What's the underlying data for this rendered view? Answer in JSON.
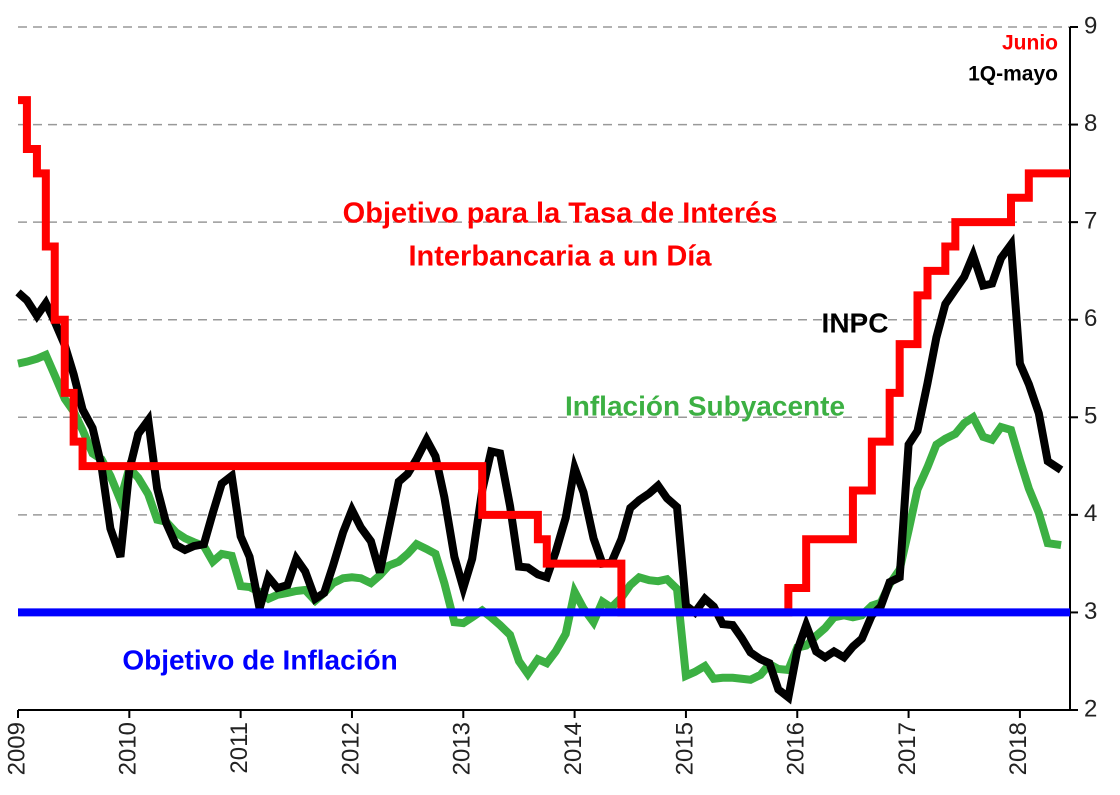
{
  "chart_data": {
    "type": "line",
    "xlim": [
      2009,
      2018.45
    ],
    "xticks": [
      2009,
      2010,
      2011,
      2012,
      2013,
      2014,
      2015,
      2016,
      2017,
      2018
    ],
    "ylim": [
      2,
      9
    ],
    "yticks": [
      2,
      3,
      4,
      5,
      6,
      7,
      8,
      9
    ],
    "grid": true,
    "x": [
      2009.0,
      2009.08,
      2009.17,
      2009.25,
      2009.33,
      2009.42,
      2009.5,
      2009.58,
      2009.67,
      2009.75,
      2009.83,
      2009.92,
      2010.0,
      2010.08,
      2010.17,
      2010.25,
      2010.33,
      2010.42,
      2010.5,
      2010.58,
      2010.67,
      2010.75,
      2010.83,
      2010.92,
      2011.0,
      2011.08,
      2011.17,
      2011.25,
      2011.33,
      2011.42,
      2011.5,
      2011.58,
      2011.67,
      2011.75,
      2011.83,
      2011.92,
      2012.0,
      2012.08,
      2012.17,
      2012.25,
      2012.33,
      2012.42,
      2012.5,
      2012.58,
      2012.67,
      2012.75,
      2012.83,
      2012.92,
      2013.0,
      2013.08,
      2013.17,
      2013.25,
      2013.33,
      2013.42,
      2013.5,
      2013.58,
      2013.67,
      2013.75,
      2013.83,
      2013.92,
      2014.0,
      2014.08,
      2014.17,
      2014.25,
      2014.33,
      2014.42,
      2014.5,
      2014.58,
      2014.67,
      2014.75,
      2014.83,
      2014.92,
      2015.0,
      2015.08,
      2015.17,
      2015.25,
      2015.33,
      2015.42,
      2015.5,
      2015.58,
      2015.67,
      2015.75,
      2015.83,
      2015.92,
      2016.0,
      2016.08,
      2016.17,
      2016.25,
      2016.33,
      2016.42,
      2016.5,
      2016.58,
      2016.67,
      2016.75,
      2016.83,
      2016.92,
      2017.0,
      2017.08,
      2017.17,
      2017.25,
      2017.33,
      2017.42,
      2017.5,
      2017.58,
      2017.67,
      2017.75,
      2017.83,
      2017.92,
      2018.0,
      2018.08,
      2018.17,
      2018.25,
      2018.37
    ],
    "series": [
      {
        "name": "Inflación Subyacente",
        "color": "#3cb043",
        "values": [
          5.55,
          5.57,
          5.6,
          5.64,
          5.43,
          5.19,
          5.06,
          4.87,
          4.63,
          4.57,
          4.4,
          4.15,
          4.48,
          4.38,
          4.21,
          3.95,
          3.93,
          3.82,
          3.76,
          3.72,
          3.68,
          3.52,
          3.6,
          3.58,
          3.27,
          3.26,
          3.21,
          3.14,
          3.18,
          3.2,
          3.22,
          3.23,
          3.12,
          3.2,
          3.3,
          3.35,
          3.36,
          3.35,
          3.3,
          3.38,
          3.48,
          3.52,
          3.6,
          3.7,
          3.65,
          3.6,
          3.3,
          2.9,
          2.89,
          2.95,
          3.02,
          2.95,
          2.87,
          2.77,
          2.5,
          2.37,
          2.52,
          2.48,
          2.6,
          2.78,
          3.21,
          3.04,
          2.9,
          3.11,
          3.05,
          3.15,
          3.28,
          3.36,
          3.33,
          3.32,
          3.34,
          3.24,
          2.35,
          2.39,
          2.45,
          2.32,
          2.33,
          2.33,
          2.32,
          2.31,
          2.36,
          2.47,
          2.42,
          2.41,
          2.64,
          2.66,
          2.76,
          2.84,
          2.95,
          2.97,
          2.95,
          2.97,
          3.07,
          3.1,
          3.29,
          3.44,
          3.84,
          4.26,
          4.49,
          4.72,
          4.78,
          4.83,
          4.94,
          5.0,
          4.8,
          4.77,
          4.9,
          4.87,
          4.56,
          4.27,
          4.02,
          3.71,
          3.69
        ]
      },
      {
        "name": "INPC",
        "color": "#000000",
        "values": [
          6.28,
          6.2,
          6.04,
          6.17,
          5.98,
          5.74,
          5.44,
          5.08,
          4.89,
          4.5,
          3.86,
          3.57,
          4.46,
          4.83,
          4.97,
          4.27,
          3.92,
          3.69,
          3.64,
          3.68,
          3.7,
          4.02,
          4.32,
          4.4,
          3.78,
          3.57,
          3.04,
          3.36,
          3.25,
          3.28,
          3.55,
          3.42,
          3.14,
          3.2,
          3.48,
          3.82,
          4.05,
          3.87,
          3.73,
          3.41,
          3.85,
          4.34,
          4.42,
          4.57,
          4.77,
          4.6,
          4.18,
          3.57,
          3.25,
          3.55,
          4.25,
          4.65,
          4.63,
          4.09,
          3.47,
          3.46,
          3.39,
          3.36,
          3.62,
          3.97,
          4.48,
          4.23,
          3.76,
          3.5,
          3.51,
          3.75,
          4.07,
          4.15,
          4.22,
          4.3,
          4.17,
          4.08,
          3.07,
          3.0,
          3.14,
          3.06,
          2.88,
          2.87,
          2.74,
          2.59,
          2.52,
          2.48,
          2.21,
          2.13,
          2.61,
          2.87,
          2.6,
          2.54,
          2.6,
          2.54,
          2.65,
          2.73,
          2.97,
          3.06,
          3.31,
          3.36,
          4.72,
          4.86,
          5.35,
          5.82,
          6.16,
          6.31,
          6.44,
          6.66,
          6.35,
          6.37,
          6.63,
          6.77,
          5.55,
          5.34,
          5.04,
          4.55,
          4.46
        ]
      },
      {
        "label": [
          "Objetivo para la Tasa de Interés",
          "Interbancaria a un Día"
        ],
        "color": "#ff0000",
        "step": true,
        "x": [
          2009.0,
          2009.08,
          2009.17,
          2009.25,
          2009.33,
          2009.42,
          2009.5,
          2009.58,
          2013.17,
          2013.67,
          2013.75,
          2014.42,
          2015.92,
          2016.08,
          2016.5,
          2016.67,
          2016.83,
          2016.92,
          2017.08,
          2017.17,
          2017.33,
          2017.42,
          2017.92,
          2018.08,
          2018.45
        ],
        "values": [
          8.25,
          7.75,
          7.5,
          6.75,
          6.0,
          5.25,
          4.75,
          4.5,
          4.0,
          3.75,
          3.5,
          3.0,
          3.25,
          3.75,
          4.25,
          4.75,
          5.25,
          5.75,
          6.25,
          6.5,
          6.75,
          7.0,
          7.25,
          7.5,
          7.5
        ]
      },
      {
        "name": "Objetivo de Inflación",
        "color": "#0000ff",
        "x": [
          2009,
          2018.45
        ],
        "values": [
          3,
          3
        ]
      }
    ],
    "annotations": [
      {
        "text": "Junio",
        "color": "#ff0000"
      },
      {
        "text": "1Q-mayo",
        "color": "#000000"
      }
    ]
  }
}
